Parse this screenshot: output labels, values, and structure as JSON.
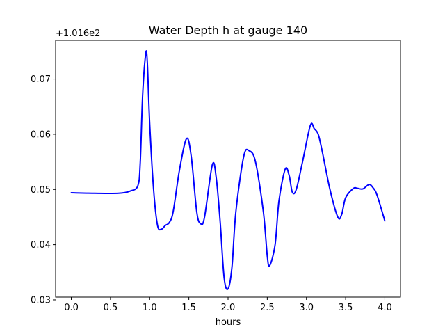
{
  "chart_data": {
    "type": "line",
    "title": "Water Depth h at gauge 140",
    "xlabel": "hours",
    "ylabel": "",
    "offset_text": "+1.016e2",
    "xlim": [
      -0.2,
      4.2
    ],
    "ylim": [
      0.0305,
      0.077
    ],
    "xticks": [
      0.0,
      0.5,
      1.0,
      1.5,
      2.0,
      2.5,
      3.0,
      3.5,
      4.0
    ],
    "xtick_labels": [
      "0.0",
      "0.5",
      "1.0",
      "1.5",
      "2.0",
      "2.5",
      "3.0",
      "3.5",
      "4.0"
    ],
    "yticks": [
      0.03,
      0.04,
      0.05,
      0.06,
      0.07
    ],
    "ytick_labels": [
      "0.03",
      "0.04",
      "0.05",
      "0.06",
      "0.07"
    ],
    "grid": false,
    "legend": "none",
    "series": [
      {
        "color": "#0000ff",
        "x": [
          0.0,
          0.3,
          0.6,
          0.75,
          0.85,
          0.88,
          0.91,
          0.95,
          0.97,
          1.0,
          1.05,
          1.1,
          1.15,
          1.2,
          1.25,
          1.3,
          1.38,
          1.47,
          1.53,
          1.6,
          1.65,
          1.7,
          1.8,
          1.85,
          1.9,
          1.95,
          2.0,
          2.05,
          2.1,
          2.2,
          2.27,
          2.35,
          2.45,
          2.5,
          2.53,
          2.6,
          2.65,
          2.73,
          2.78,
          2.82,
          2.87,
          2.95,
          3.05,
          3.1,
          3.15,
          3.2,
          3.3,
          3.4,
          3.45,
          3.5,
          3.6,
          3.65,
          3.72,
          3.8,
          3.85,
          3.9,
          4.0
        ],
        "y": [
          0.0494,
          0.0493,
          0.0493,
          0.0497,
          0.0507,
          0.055,
          0.067,
          0.0746,
          0.073,
          0.062,
          0.05,
          0.0435,
          0.0428,
          0.0435,
          0.044,
          0.046,
          0.0535,
          0.0592,
          0.056,
          0.046,
          0.0438,
          0.045,
          0.0545,
          0.052,
          0.044,
          0.034,
          0.032,
          0.036,
          0.046,
          0.056,
          0.057,
          0.055,
          0.046,
          0.038,
          0.0362,
          0.04,
          0.048,
          0.0537,
          0.0525,
          0.0495,
          0.05,
          0.055,
          0.0616,
          0.061,
          0.06,
          0.057,
          0.05,
          0.045,
          0.0455,
          0.0485,
          0.0502,
          0.0502,
          0.0501,
          0.0509,
          0.0503,
          0.049,
          0.0443
        ]
      }
    ]
  }
}
